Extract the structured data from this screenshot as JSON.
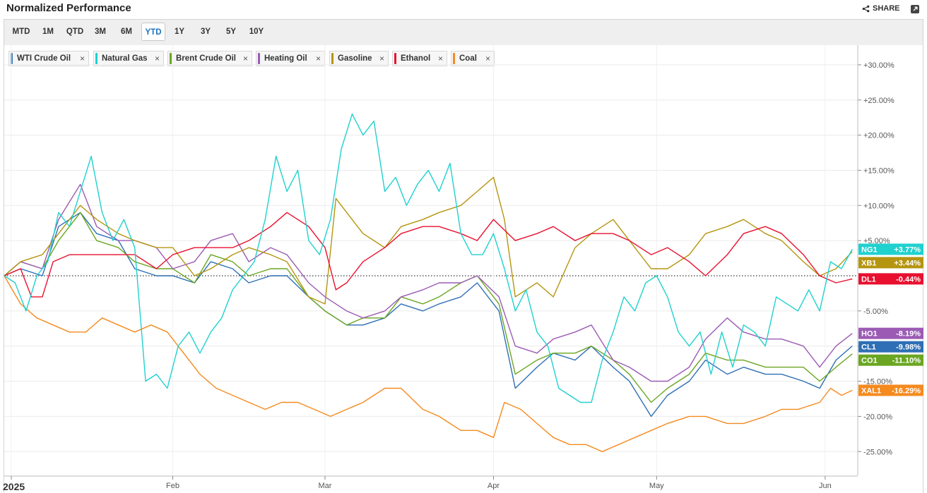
{
  "header": {
    "title": "Normalized Performance",
    "share_label": "SHARE"
  },
  "range_buttons": [
    "MTD",
    "1M",
    "QTD",
    "3M",
    "6M",
    "YTD",
    "1Y",
    "3Y",
    "5Y",
    "10Y"
  ],
  "active_range": "YTD",
  "colors": {
    "WTI Crude Oil": "#2e6fb5",
    "Natural Gas": "#1fd1cf",
    "Brent Crude Oil": "#6aa621",
    "Heating Oil": "#9b5bb4",
    "Gasoline": "#b5950f",
    "Ethanol": "#e8102e",
    "Coal": "#f58a1f"
  },
  "chart_data": {
    "type": "line",
    "title": "Normalized Performance",
    "ylabel": "",
    "ylim": [
      -27,
      33
    ],
    "y_ticks": [
      "+30.00%",
      "+25.00%",
      "+20.00%",
      "+15.00%",
      "+10.00%",
      "+5.00%",
      "-5.00%",
      "-10.00%",
      "-15.00%",
      "-20.00%",
      "-25.00%"
    ],
    "x_labels": [
      {
        "label": "2025",
        "day": 0
      },
      {
        "label": "Feb",
        "day": 31
      },
      {
        "label": "Mar",
        "day": 59
      },
      {
        "label": "Apr",
        "day": 90
      },
      {
        "label": "May",
        "day": 120
      },
      {
        "label": "Jun",
        "day": 151
      }
    ],
    "x_range_days": [
      0,
      157
    ],
    "series": [
      {
        "name": "WTI Crude Oil",
        "ticker": "CL1",
        "last": "-9.98%",
        "last_value": -9.98,
        "days": [
          0,
          3,
          7,
          10,
          14,
          17,
          21,
          24,
          28,
          31,
          35,
          38,
          42,
          45,
          49,
          52,
          56,
          59,
          63,
          66,
          70,
          73,
          77,
          80,
          84,
          87,
          91,
          94,
          98,
          101,
          105,
          108,
          112,
          115,
          119,
          122,
          126,
          129,
          133,
          136,
          140,
          143,
          147,
          150,
          153,
          156
        ],
        "values": [
          0,
          1,
          0,
          7,
          9,
          6,
          5,
          1,
          0,
          0,
          -1,
          2,
          1,
          -1,
          0,
          0,
          -3,
          -5,
          -7,
          -7,
          -6,
          -4,
          -5,
          -4,
          -3,
          -1,
          -5,
          -16,
          -13,
          -11,
          -12,
          -10,
          -13,
          -15,
          -20,
          -17,
          -15,
          -12,
          -14,
          -13,
          -14,
          -14,
          -15,
          -16,
          -12,
          -9.98
        ]
      },
      {
        "name": "Brent Crude Oil",
        "ticker": "CO1",
        "last": "-11.10%",
        "last_value": -11.1,
        "days": [
          0,
          3,
          7,
          10,
          14,
          17,
          21,
          24,
          28,
          31,
          35,
          38,
          42,
          45,
          49,
          52,
          56,
          59,
          63,
          66,
          70,
          73,
          77,
          80,
          84,
          87,
          91,
          94,
          98,
          101,
          105,
          108,
          112,
          115,
          119,
          122,
          126,
          129,
          133,
          136,
          140,
          143,
          147,
          150,
          153,
          156
        ],
        "values": [
          0,
          2,
          1,
          5,
          9,
          5,
          4,
          2,
          1,
          1,
          -1,
          3,
          2,
          0,
          1,
          1,
          -3,
          -5,
          -7,
          -6,
          -6,
          -3,
          -4,
          -3,
          -1,
          0,
          -4,
          -14,
          -12,
          -11,
          -11,
          -10,
          -12,
          -14,
          -18,
          -16,
          -14,
          -11,
          -12,
          -12,
          -13,
          -13,
          -13,
          -15,
          -13,
          -11.1
        ]
      },
      {
        "name": "Heating Oil",
        "ticker": "HO1",
        "last": "-8.19%",
        "last_value": -8.19,
        "days": [
          0,
          3,
          7,
          10,
          14,
          17,
          21,
          24,
          28,
          31,
          35,
          38,
          42,
          45,
          49,
          52,
          56,
          59,
          63,
          66,
          70,
          73,
          77,
          80,
          84,
          87,
          91,
          94,
          98,
          101,
          105,
          108,
          112,
          115,
          119,
          122,
          126,
          129,
          133,
          136,
          140,
          143,
          147,
          150,
          153,
          156
        ],
        "values": [
          0,
          2,
          1,
          8,
          13,
          7,
          5,
          5,
          4,
          1,
          2,
          5,
          6,
          2,
          4,
          3,
          -1,
          -3,
          -5,
          -6,
          -5,
          -3,
          -2,
          -1,
          -1,
          0,
          -3,
          -10,
          -11,
          -9,
          -8,
          -7,
          -12,
          -13,
          -15,
          -15,
          -13,
          -9,
          -6,
          -8,
          -9,
          -9,
          -10,
          -13,
          -10,
          -8.19
        ]
      },
      {
        "name": "Natural Gas",
        "ticker": "NG1",
        "last": "+3.77%",
        "last_value": 3.77,
        "days": [
          0,
          2,
          4,
          6,
          8,
          10,
          12,
          14,
          16,
          18,
          20,
          22,
          24,
          26,
          28,
          30,
          32,
          34,
          36,
          38,
          40,
          42,
          44,
          46,
          48,
          50,
          52,
          54,
          56,
          58,
          60,
          62,
          64,
          66,
          68,
          70,
          72,
          74,
          76,
          78,
          80,
          82,
          84,
          86,
          88,
          90,
          92,
          94,
          96,
          98,
          100,
          102,
          104,
          106,
          108,
          110,
          112,
          114,
          116,
          118,
          120,
          122,
          124,
          126,
          128,
          130,
          132,
          134,
          136,
          138,
          140,
          142,
          144,
          146,
          148,
          150,
          152,
          154,
          156
        ],
        "values": [
          0,
          -1,
          -5,
          0,
          2,
          9,
          7,
          12,
          17,
          9,
          5,
          8,
          4,
          -15,
          -14,
          -16,
          -10,
          -8,
          -11,
          -8,
          -6,
          -2,
          0,
          2,
          8,
          17,
          12,
          15,
          5,
          3,
          8,
          18,
          23,
          20,
          22,
          12,
          14,
          10,
          13,
          15,
          12,
          16,
          6,
          3,
          3,
          6,
          1,
          -5,
          -2,
          -8,
          -10,
          -16,
          -17,
          -18,
          -18,
          -12,
          -8,
          -3,
          -5,
          -1,
          0,
          -3,
          -8,
          -10,
          -8,
          -14,
          -8,
          -13,
          -7,
          -8,
          -10,
          -3,
          -4,
          -5,
          -2,
          -5,
          2,
          1,
          3.77
        ]
      },
      {
        "name": "Gasoline",
        "ticker": "XB1",
        "last": "+3.44%",
        "last_value": 3.44,
        "days": [
          0,
          3,
          7,
          10,
          14,
          17,
          21,
          24,
          28,
          31,
          35,
          38,
          42,
          45,
          49,
          52,
          56,
          59,
          61,
          63,
          66,
          70,
          73,
          77,
          80,
          84,
          87,
          90,
          92,
          94,
          96,
          98,
          101,
          105,
          108,
          112,
          115,
          119,
          122,
          126,
          129,
          133,
          136,
          140,
          143,
          147,
          150,
          153,
          156
        ],
        "values": [
          0,
          2,
          3,
          6,
          10,
          8,
          6,
          5,
          4,
          4,
          0,
          1,
          3,
          4,
          3,
          2,
          -3,
          -4,
          11,
          9,
          6,
          4,
          7,
          8,
          9,
          10,
          12,
          14,
          8,
          -3,
          -2,
          -1,
          -3,
          4,
          6,
          8,
          5,
          1,
          1,
          3,
          6,
          7,
          8,
          6,
          5,
          2,
          0,
          1,
          3.44
        ]
      },
      {
        "name": "Ethanol",
        "ticker": "DL1",
        "last": "-0.44%",
        "last_value": -0.44,
        "days": [
          0,
          3,
          5,
          7,
          9,
          12,
          14,
          17,
          21,
          24,
          28,
          31,
          35,
          38,
          42,
          45,
          49,
          52,
          56,
          59,
          61,
          63,
          66,
          70,
          73,
          77,
          80,
          84,
          87,
          90,
          94,
          98,
          101,
          105,
          108,
          112,
          115,
          119,
          122,
          126,
          129,
          133,
          136,
          140,
          143,
          147,
          150,
          153,
          156
        ],
        "values": [
          0,
          1,
          -3,
          -3,
          2,
          3,
          3,
          3,
          3,
          3,
          1,
          3,
          4,
          4,
          4,
          5,
          7,
          9,
          7,
          4,
          -2,
          -1,
          2,
          4,
          6,
          7,
          7,
          6,
          5,
          8,
          5,
          6,
          7,
          5,
          6,
          6,
          5,
          3,
          4,
          2,
          0,
          3,
          6,
          7,
          6,
          3,
          0,
          -1,
          -0.44
        ]
      },
      {
        "name": "Coal",
        "ticker": "XAL1",
        "last": "-16.29%",
        "last_value": -16.29,
        "days": [
          0,
          3,
          6,
          9,
          12,
          15,
          18,
          21,
          24,
          27,
          30,
          33,
          36,
          39,
          42,
          45,
          48,
          51,
          54,
          57,
          60,
          63,
          66,
          70,
          73,
          77,
          80,
          84,
          87,
          90,
          92,
          95,
          98,
          101,
          104,
          107,
          110,
          113,
          116,
          119,
          122,
          126,
          129,
          133,
          136,
          140,
          143,
          146,
          150,
          152,
          154,
          156
        ],
        "values": [
          0,
          -4,
          -6,
          -7,
          -8,
          -8,
          -6,
          -7,
          -8,
          -7,
          -8,
          -11,
          -14,
          -16,
          -17,
          -18,
          -19,
          -18,
          -18,
          -19,
          -20,
          -19,
          -18,
          -16,
          -16,
          -19,
          -20,
          -22,
          -22,
          -23,
          -18,
          -19,
          -21,
          -23,
          -24,
          -24,
          -25,
          -24,
          -23,
          -22,
          -21,
          -20,
          -20,
          -21,
          -21,
          -20,
          -19,
          -19,
          -18,
          -16,
          -17,
          -16.29
        ]
      }
    ]
  }
}
